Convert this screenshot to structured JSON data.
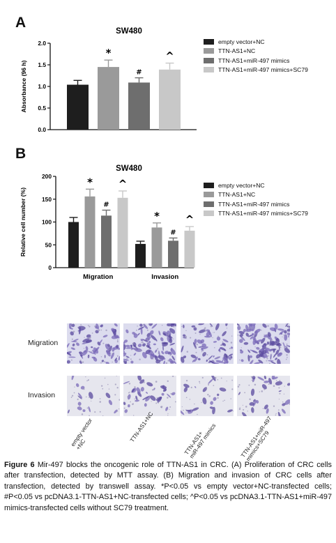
{
  "panel_a_letter": "A",
  "panel_b_letter": "B",
  "legend": [
    {
      "label": "empty vector+NC",
      "color": "#1e1e1e"
    },
    {
      "label": "TTN-AS1+NC",
      "color": "#9a9a9a"
    },
    {
      "label": "TTN-AS1+miR-497 mimics",
      "color": "#6e6e6e"
    },
    {
      "label": "TTN-AS1+miR-497 mimics+SC79",
      "color": "#c8c8c8"
    }
  ],
  "chart_data": [
    {
      "type": "bar",
      "title": "SW480",
      "xlabel": "",
      "ylabel": "Absorbance (96 h)",
      "ylim": [
        0,
        2.0
      ],
      "yticks": [
        "0.0",
        "0.5",
        "1.0",
        "1.5",
        "2.0"
      ],
      "categories": [
        ""
      ],
      "series": [
        {
          "name": "empty vector+NC",
          "values": [
            1.04
          ],
          "errors": [
            0.1
          ],
          "marker": ""
        },
        {
          "name": "TTN-AS1+NC",
          "values": [
            1.45
          ],
          "errors": [
            0.16
          ],
          "marker": "*"
        },
        {
          "name": "TTN-AS1+miR-497 mimics",
          "values": [
            1.09
          ],
          "errors": [
            0.11
          ],
          "marker": "#"
        },
        {
          "name": "TTN-AS1+miR-497 mimics+SC79",
          "values": [
            1.39
          ],
          "errors": [
            0.15
          ],
          "marker": "^"
        }
      ]
    },
    {
      "type": "bar",
      "title": "SW480",
      "xlabel": "",
      "ylabel": "Relative cell number (%)",
      "ylim": [
        0,
        200
      ],
      "yticks": [
        "0",
        "50",
        "100",
        "150",
        "200"
      ],
      "categories": [
        "Migration",
        "Invasion"
      ],
      "series": [
        {
          "name": "empty vector+NC",
          "values": [
            100,
            52
          ],
          "errors": [
            10,
            6
          ],
          "markers": [
            "",
            ""
          ]
        },
        {
          "name": "TTN-AS1+NC",
          "values": [
            156,
            88
          ],
          "errors": [
            16,
            10
          ],
          "markers": [
            "*",
            "*"
          ]
        },
        {
          "name": "TTN-AS1+miR-497 mimics",
          "values": [
            114,
            59
          ],
          "errors": [
            12,
            6
          ],
          "markers": [
            "#",
            "#"
          ]
        },
        {
          "name": "TTN-AS1+miR-497 mimics+SC79",
          "values": [
            153,
            81
          ],
          "errors": [
            15,
            9
          ],
          "markers": [
            "^",
            "^"
          ]
        }
      ]
    }
  ],
  "micrographs": {
    "rows": [
      "Migration",
      "Invasion"
    ],
    "columns": [
      "empty vector\n+NC",
      "TTN-AS1+NC",
      "TTN-AS1+\nmiR-497 mimics",
      "TTN-AS1+miR-497\nmimics+SC79"
    ]
  },
  "caption": {
    "figure_label": "Figure 6",
    "title": "Mir-497 blocks the oncogenic role of TTN-AS1 in CRC.",
    "text": " (A) Proliferation of CRC cells after transfection, detected by MTT assay. (B) Migration and invasion of CRC cells after transfection, detected by transwell assay. *P<0.05 vs empty vector+NC-transfected cells; #P<0.05 vs pcDNA3.1-TTN-AS1+NC-transfected cells; ^P<0.05 vs pcDNA3.1-TTN-AS1+miR-497 mimics-transfected cells without SC79 treatment."
  }
}
